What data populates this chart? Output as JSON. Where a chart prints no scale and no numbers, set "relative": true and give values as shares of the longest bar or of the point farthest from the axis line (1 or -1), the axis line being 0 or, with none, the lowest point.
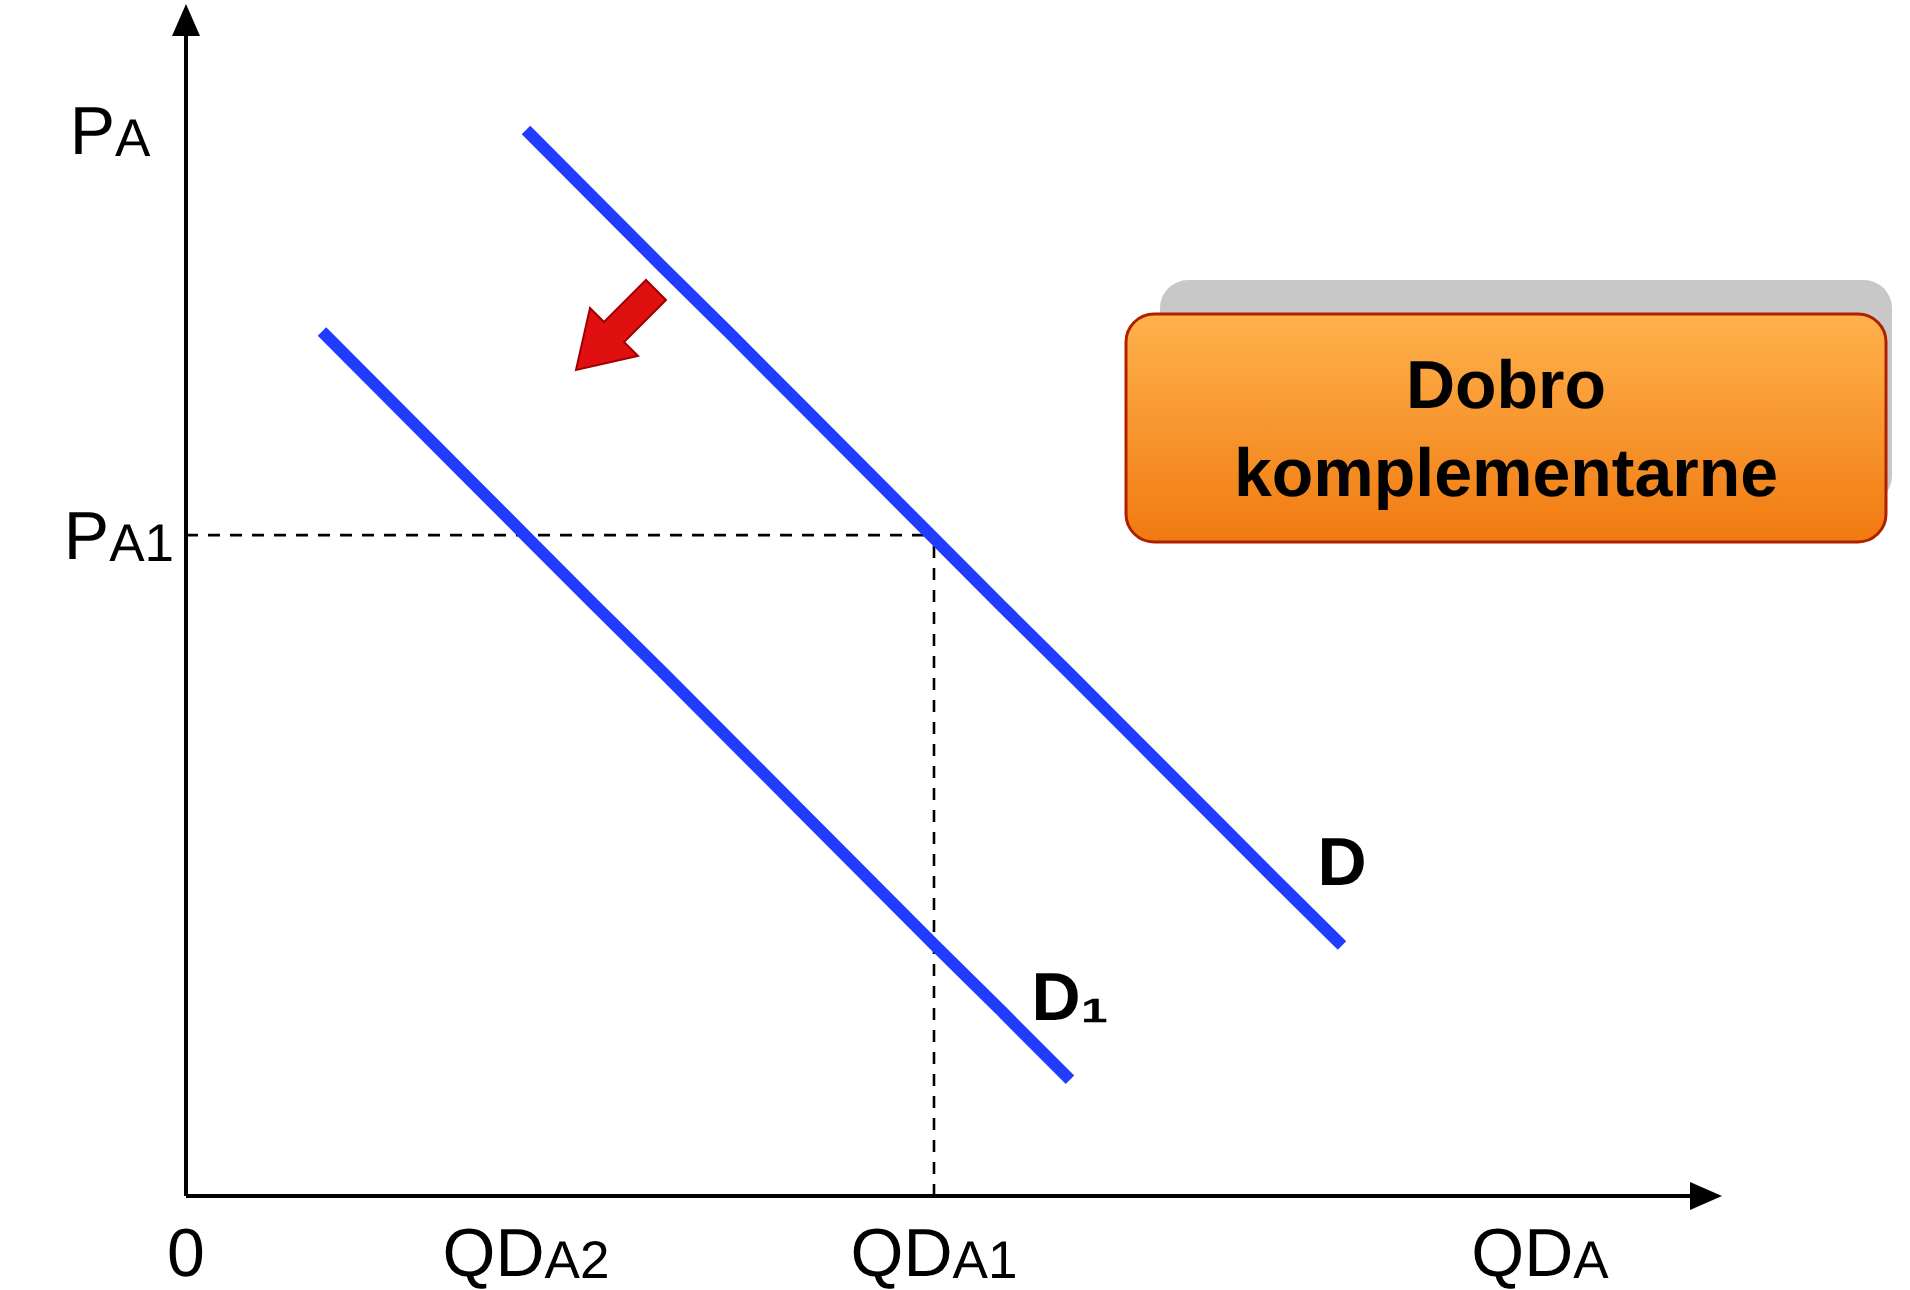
{
  "chart_data": {
    "type": "line",
    "relative": true,
    "xlabel": "QD$_{A}$",
    "ylabel": "P$_{A}$",
    "categories": [
      "0",
      null,
      null,
      null,
      null,
      "QD$_{A2}$",
      null,
      null,
      null,
      null,
      null,
      "QD$_{A1}$",
      null,
      null,
      null,
      null,
      null,
      null,
      null,
      null,
      null,
      null,
      null
    ],
    "series": [
      {
        "name": "D",
        "color": "#1f3cff",
        "values": [
          null,
          null,
          null,
          null,
          null,
          1.0,
          0.936,
          0.872,
          0.809,
          0.745,
          0.681,
          0.617,
          0.553,
          0.49,
          0.426,
          0.362,
          0.298,
          0.235,
          null,
          null,
          null,
          null,
          null
        ]
      },
      {
        "name": "D₁",
        "color": "#1f3cff",
        "values": [
          null,
          null,
          0.811,
          0.747,
          0.683,
          0.619,
          0.555,
          0.492,
          0.428,
          0.364,
          0.3,
          0.236,
          0.173,
          0.109,
          null,
          null,
          null,
          null,
          null,
          null,
          null,
          null,
          null
        ]
      }
    ],
    "ref_lines": [
      {
        "axis": "x",
        "value": "QD$_{A1}$",
        "line_style": "dashed",
        "color": "#000000"
      },
      {
        "axis": "y",
        "value": 0.62,
        "label": "P$_{A1}$",
        "line_style": "dashed",
        "color": "#000000"
      }
    ],
    "annotations": [
      "Dobro komplementarne"
    ],
    "grid": false,
    "marker": "none",
    "line_style": "solid"
  }
}
